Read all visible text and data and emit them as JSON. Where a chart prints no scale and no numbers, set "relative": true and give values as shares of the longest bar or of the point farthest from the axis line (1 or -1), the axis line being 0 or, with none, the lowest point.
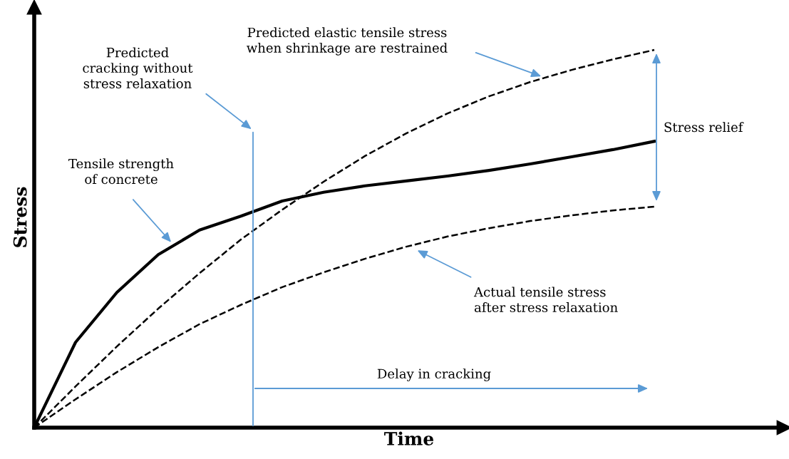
{
  "chart_data": {
    "type": "line",
    "relative": true,
    "xlabel": "Time",
    "ylabel": "Stress",
    "categories": [
      null,
      null,
      null,
      null,
      null,
      null,
      null,
      null,
      null,
      null,
      null,
      null,
      null,
      null,
      null,
      null
    ],
    "series": [
      {
        "color": "#000000",
        "line_style": "dashed",
        "values": [
          0,
          0.109,
          0.215,
          0.315,
          0.409,
          0.498,
          0.577,
          0.651,
          0.719,
          0.779,
          0.832,
          0.877,
          0.915,
          0.947,
          0.975,
          1
        ]
      },
      {
        "color": "#000000",
        "line_style": "solid",
        "values": [
          0,
          0.226,
          0.358,
          0.458,
          0.523,
          0.56,
          0.6,
          0.623,
          0.64,
          0.653,
          0.666,
          0.681,
          0.698,
          0.717,
          0.736,
          0.758
        ]
      },
      {
        "color": "#000000",
        "line_style": "dashed",
        "values": [
          0,
          0.075,
          0.147,
          0.213,
          0.274,
          0.325,
          0.372,
          0.411,
          0.447,
          0.479,
          0.506,
          0.528,
          0.547,
          0.562,
          0.575,
          0.585
        ]
      }
    ],
    "annotations": [
      "Predicted elastic tensile stress\nwhen shrinkage are restrained",
      "Predicted\ncracking without\nstress relaxation",
      "Tensile strength\nof concrete",
      "Stress relief",
      "Actual tensile stress\nafter stress relaxation",
      "Delay in cracking"
    ],
    "marker": "none"
  }
}
